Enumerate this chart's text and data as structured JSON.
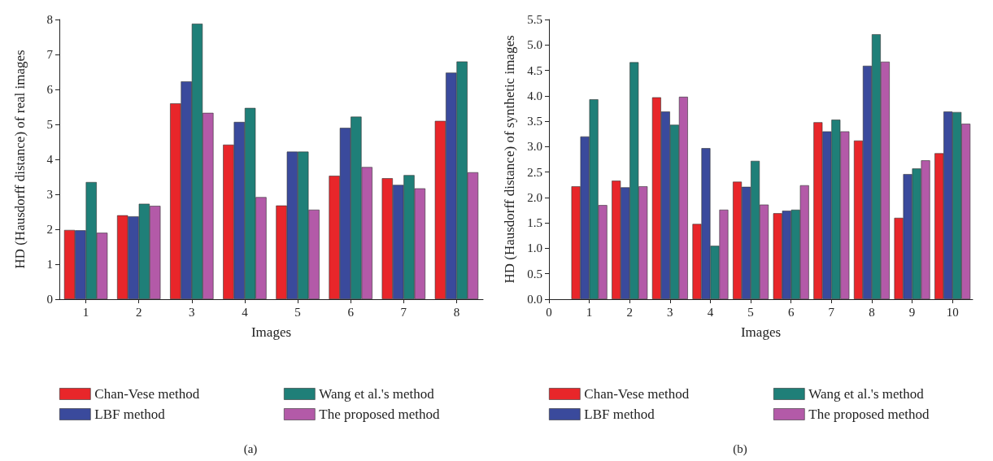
{
  "chart_data": [
    {
      "type": "bar",
      "xlabel": "Images",
      "ylabel": "HD (Hausdorff distance) of real images",
      "categories": [
        "1",
        "2",
        "3",
        "4",
        "5",
        "6",
        "7",
        "8"
      ],
      "ylim": [
        0,
        8
      ],
      "yticks": [
        0,
        1,
        2,
        3,
        4,
        5,
        6,
        7,
        8
      ],
      "grid": false,
      "legend": "bottom",
      "annotations": [
        "(a)"
      ],
      "series": [
        {
          "name": "Chan-Vese method",
          "color": "#e8262a",
          "values": [
            1.98,
            2.4,
            5.6,
            4.42,
            2.68,
            3.53,
            3.46,
            5.1
          ]
        },
        {
          "name": "LBF method",
          "color": "#3a4a9c",
          "values": [
            1.97,
            2.37,
            6.23,
            5.07,
            4.22,
            4.9,
            3.27,
            6.48
          ]
        },
        {
          "name": "Wang et al.'s method",
          "color": "#1f7f78",
          "values": [
            3.35,
            2.73,
            7.88,
            5.47,
            4.22,
            5.22,
            3.55,
            6.8
          ]
        },
        {
          "name": "The proposed method",
          "color": "#b35aa8",
          "values": [
            1.9,
            2.67,
            5.33,
            2.92,
            2.56,
            3.78,
            3.17,
            3.63
          ]
        }
      ]
    },
    {
      "type": "bar",
      "xlabel": "Images",
      "ylabel": "HD (Hausdorff distance) of synthetic images",
      "x": [
        1,
        2,
        3,
        4,
        5,
        6,
        7,
        8,
        9,
        10
      ],
      "xlim": [
        0,
        10.5
      ],
      "xticks": [
        0,
        1,
        2,
        3,
        4,
        5,
        6,
        7,
        8,
        9,
        10
      ],
      "ylim": [
        0,
        5.5
      ],
      "yticks": [
        {
          "value": 0,
          "label": "0.0"
        },
        0.5,
        {
          "value": 1,
          "label": "1.0"
        },
        1.5,
        {
          "value": 2,
          "label": "2.0"
        },
        2.5,
        {
          "value": 3,
          "label": "3.0"
        },
        3.5,
        {
          "value": 4,
          "label": "4.0"
        },
        4.5,
        {
          "value": 5,
          "label": "5.0"
        },
        5.5
      ],
      "grid": false,
      "legend": "bottom",
      "annotations": [
        "(b)"
      ],
      "series": [
        {
          "name": "Chan-Vese method",
          "color": "#e8262a",
          "values": [
            2.22,
            2.33,
            3.97,
            1.48,
            2.31,
            1.69,
            3.48,
            3.12,
            1.6,
            2.87
          ]
        },
        {
          "name": "LBF method",
          "color": "#3a4a9c",
          "values": [
            3.2,
            2.2,
            3.69,
            2.97,
            2.21,
            1.74,
            3.3,
            4.59,
            2.46,
            3.69
          ]
        },
        {
          "name": "Wang et al.'s method",
          "color": "#1f7f78",
          "values": [
            3.93,
            4.66,
            3.43,
            1.05,
            2.72,
            1.76,
            3.53,
            5.21,
            2.57,
            3.68
          ]
        },
        {
          "name": "The proposed method",
          "color": "#b35aa8",
          "values": [
            1.85,
            2.22,
            3.98,
            1.76,
            1.86,
            2.24,
            3.3,
            4.67,
            2.73,
            3.45
          ]
        }
      ]
    }
  ]
}
